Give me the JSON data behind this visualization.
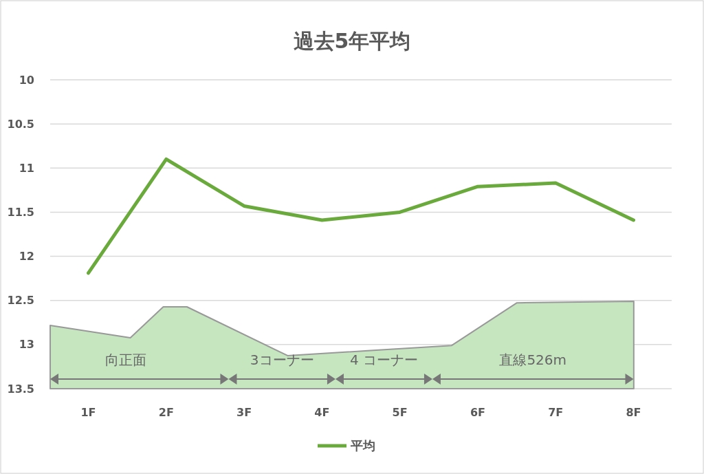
{
  "chart_data": {
    "type": "line",
    "title": "過去5年平均",
    "xlim": [
      0.51,
      8.49
    ],
    "xticks": [
      {
        "value": 1,
        "label": "1F"
      },
      {
        "value": 2,
        "label": "2F"
      },
      {
        "value": 3,
        "label": "3F"
      },
      {
        "value": 4,
        "label": "4F"
      },
      {
        "value": 5,
        "label": "5F"
      },
      {
        "value": 6,
        "label": "6F"
      },
      {
        "value": 7,
        "label": "7F"
      },
      {
        "value": 8,
        "label": "8F"
      }
    ],
    "ylim": [
      13.5,
      10
    ],
    "yticks": [
      10,
      10.5,
      11,
      11.5,
      12,
      12.5,
      13,
      13.5
    ],
    "series": [
      {
        "name": "平均",
        "color": "#6aaa3c",
        "x": [
          1,
          2,
          3,
          4,
          5,
          6,
          7,
          8
        ],
        "values": [
          12.19,
          10.9,
          11.43,
          11.59,
          11.5,
          11.21,
          11.17,
          11.59
        ]
      }
    ],
    "annotations": [
      "向正面",
      "3コーナー",
      "4 コーナー",
      "直線526m"
    ],
    "grid": "y",
    "legend": "bottom",
    "marker": "none",
    "line_style": "solid"
  }
}
